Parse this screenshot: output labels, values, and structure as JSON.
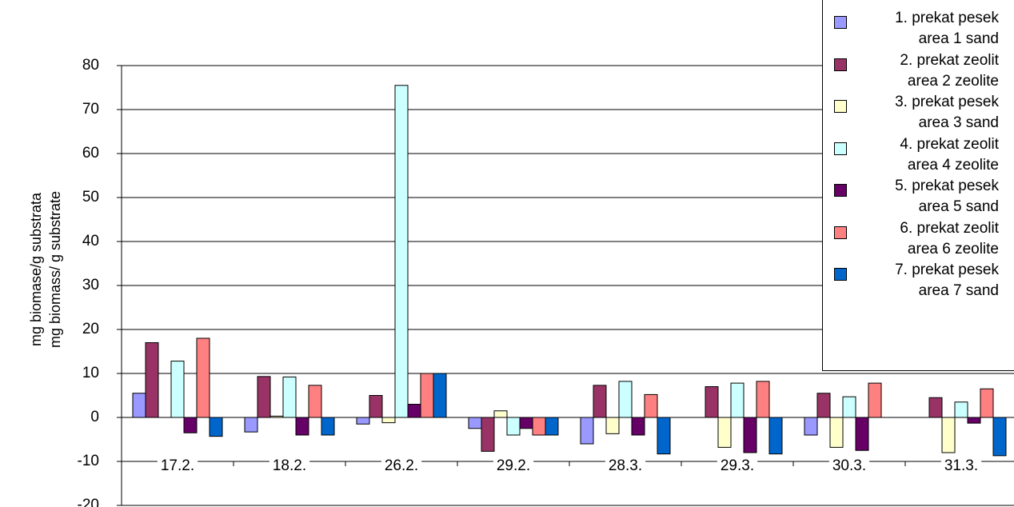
{
  "chart_data": {
    "type": "bar",
    "ylabel": [
      "mg biomase/g substrata",
      "mg biomass/ g substrate"
    ],
    "categories": [
      "17.2.",
      "18.2.",
      "26.2.",
      "29.2.",
      "28.3.",
      "29.3.",
      "30.3.",
      "31.3."
    ],
    "ylim": [
      -20,
      80
    ],
    "yticks": [
      -20,
      -10,
      0,
      10,
      20,
      30,
      40,
      50,
      60,
      70,
      80
    ],
    "category_axis_at": -10,
    "grid": true,
    "series": [
      {
        "name": "1. prekat pesek\narea 1 sand",
        "color": "#9999ff",
        "values": [
          5.5,
          -3.3,
          -1.5,
          -2.5,
          -6,
          null,
          -4,
          null
        ]
      },
      {
        "name": "2. prekat zeolit\narea 2 zeolite",
        "color": "#993366",
        "values": [
          17,
          9.3,
          5,
          -7.7,
          7.3,
          7,
          5.5,
          4.5
        ]
      },
      {
        "name": "3. prekat pesek\narea 3 sand",
        "color": "#ffffcc",
        "values": [
          null,
          0.3,
          -1.2,
          1.5,
          -3.7,
          -6.8,
          -6.8,
          -8
        ]
      },
      {
        "name": "4. prekat zeolit\narea 4 zeolite",
        "color": "#ccffff",
        "values": [
          12.8,
          9.2,
          75.5,
          -4,
          8.2,
          7.8,
          4.7,
          3.5
        ]
      },
      {
        "name": "5. prekat pesek\narea 5 sand",
        "color": "#660066",
        "values": [
          -3.5,
          -4,
          3,
          -2.5,
          -4,
          -8,
          -7.5,
          -1.3
        ]
      },
      {
        "name": "6. prekat zeolit\narea 6 zeolite",
        "color": "#ff8080",
        "values": [
          18,
          7.3,
          10,
          -4,
          5.2,
          8.2,
          7.8,
          6.5
        ]
      },
      {
        "name": "7. prekat pesek\narea 7 sand",
        "color": "#0066cc",
        "values": [
          -4.3,
          -4,
          10,
          -4,
          -8.3,
          -8.3,
          null,
          -8.7
        ]
      }
    ]
  }
}
